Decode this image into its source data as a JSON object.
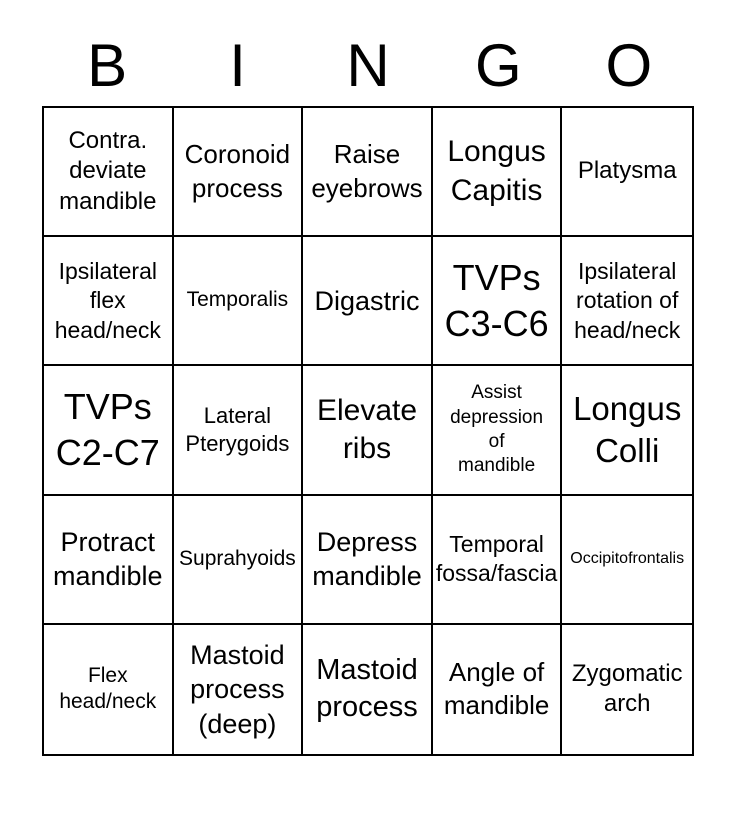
{
  "colors": {
    "background": "#ffffff",
    "text": "#000000",
    "grid_border": "#000000"
  },
  "title": {
    "letters": [
      "B",
      "I",
      "N",
      "G",
      "O"
    ]
  },
  "grid": {
    "rows": 5,
    "cols": 5,
    "cells": [
      "Contra.\ndeviate\nmandible",
      "Coronoid\nprocess",
      "Raise\neyebrows",
      "Longus\nCapitis",
      "Platysma",
      "Ipsilateral\nflex\nhead/neck",
      "Temporalis",
      "Digastric",
      "TVPs\nC3-C6",
      "Ipsilateral\nrotation of\nhead/neck",
      "TVPs\nC2-C7",
      "Lateral\nPterygoids",
      "Elevate\nribs",
      "Assist\ndepression\nof\nmandible",
      "Longus\nColli",
      "Protract\nmandible",
      "Suprahyoids",
      "Depress\nmandible",
      "Temporal\nfossa/fascia",
      "Occipitofrontalis",
      "Flex\nhead/neck",
      "Mastoid\nprocess\n(deep)",
      "Mastoid\nprocess",
      "Angle of\nmandible",
      "Zygomatic\narch"
    ]
  }
}
